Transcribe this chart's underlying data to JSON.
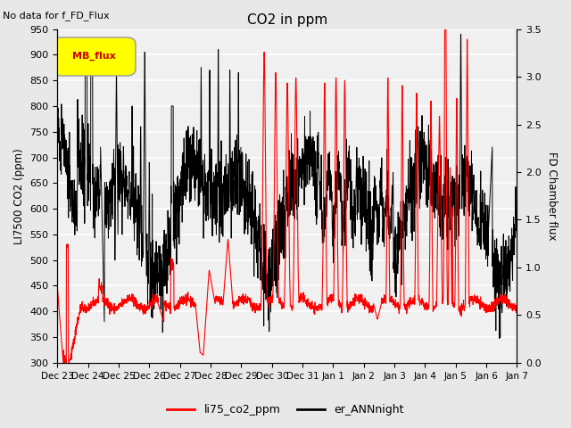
{
  "title": "CO2 in ppm",
  "top_left_text": "No data for f_FD_Flux",
  "ylabel_left": "LI7500 CO2 (ppm)",
  "ylabel_right": "FD Chamber flux",
  "ylim_left": [
    300,
    950
  ],
  "ylim_right": [
    0.0,
    3.5
  ],
  "yticks_left": [
    300,
    350,
    400,
    450,
    500,
    550,
    600,
    650,
    700,
    750,
    800,
    850,
    900,
    950
  ],
  "yticks_right": [
    0.0,
    0.5,
    1.0,
    1.5,
    2.0,
    2.5,
    3.0,
    3.5
  ],
  "xticklabels": [
    "Dec 23",
    "Dec 24",
    "Dec 25",
    "Dec 26",
    "Dec 27",
    "Dec 28",
    "Dec 29",
    "Dec 30",
    "Dec 31",
    "Jan 1",
    "Jan 2",
    "Jan 3",
    "Jan 4",
    "Jan 5",
    "Jan 6",
    "Jan 7"
  ],
  "legend_label_red": "li75_co2_ppm",
  "legend_label_black": "er_ANNnight",
  "legend_box_label": "MB_flux",
  "bg_color": "#e8e8e8",
  "plot_bg_color": "#f0f0f0",
  "line_color_red": "#ff0000",
  "line_color_black": "#000000",
  "legend_box_color": "#ffff00",
  "legend_box_border_color": "#999999",
  "legend_box_text_color": "#cc0000"
}
